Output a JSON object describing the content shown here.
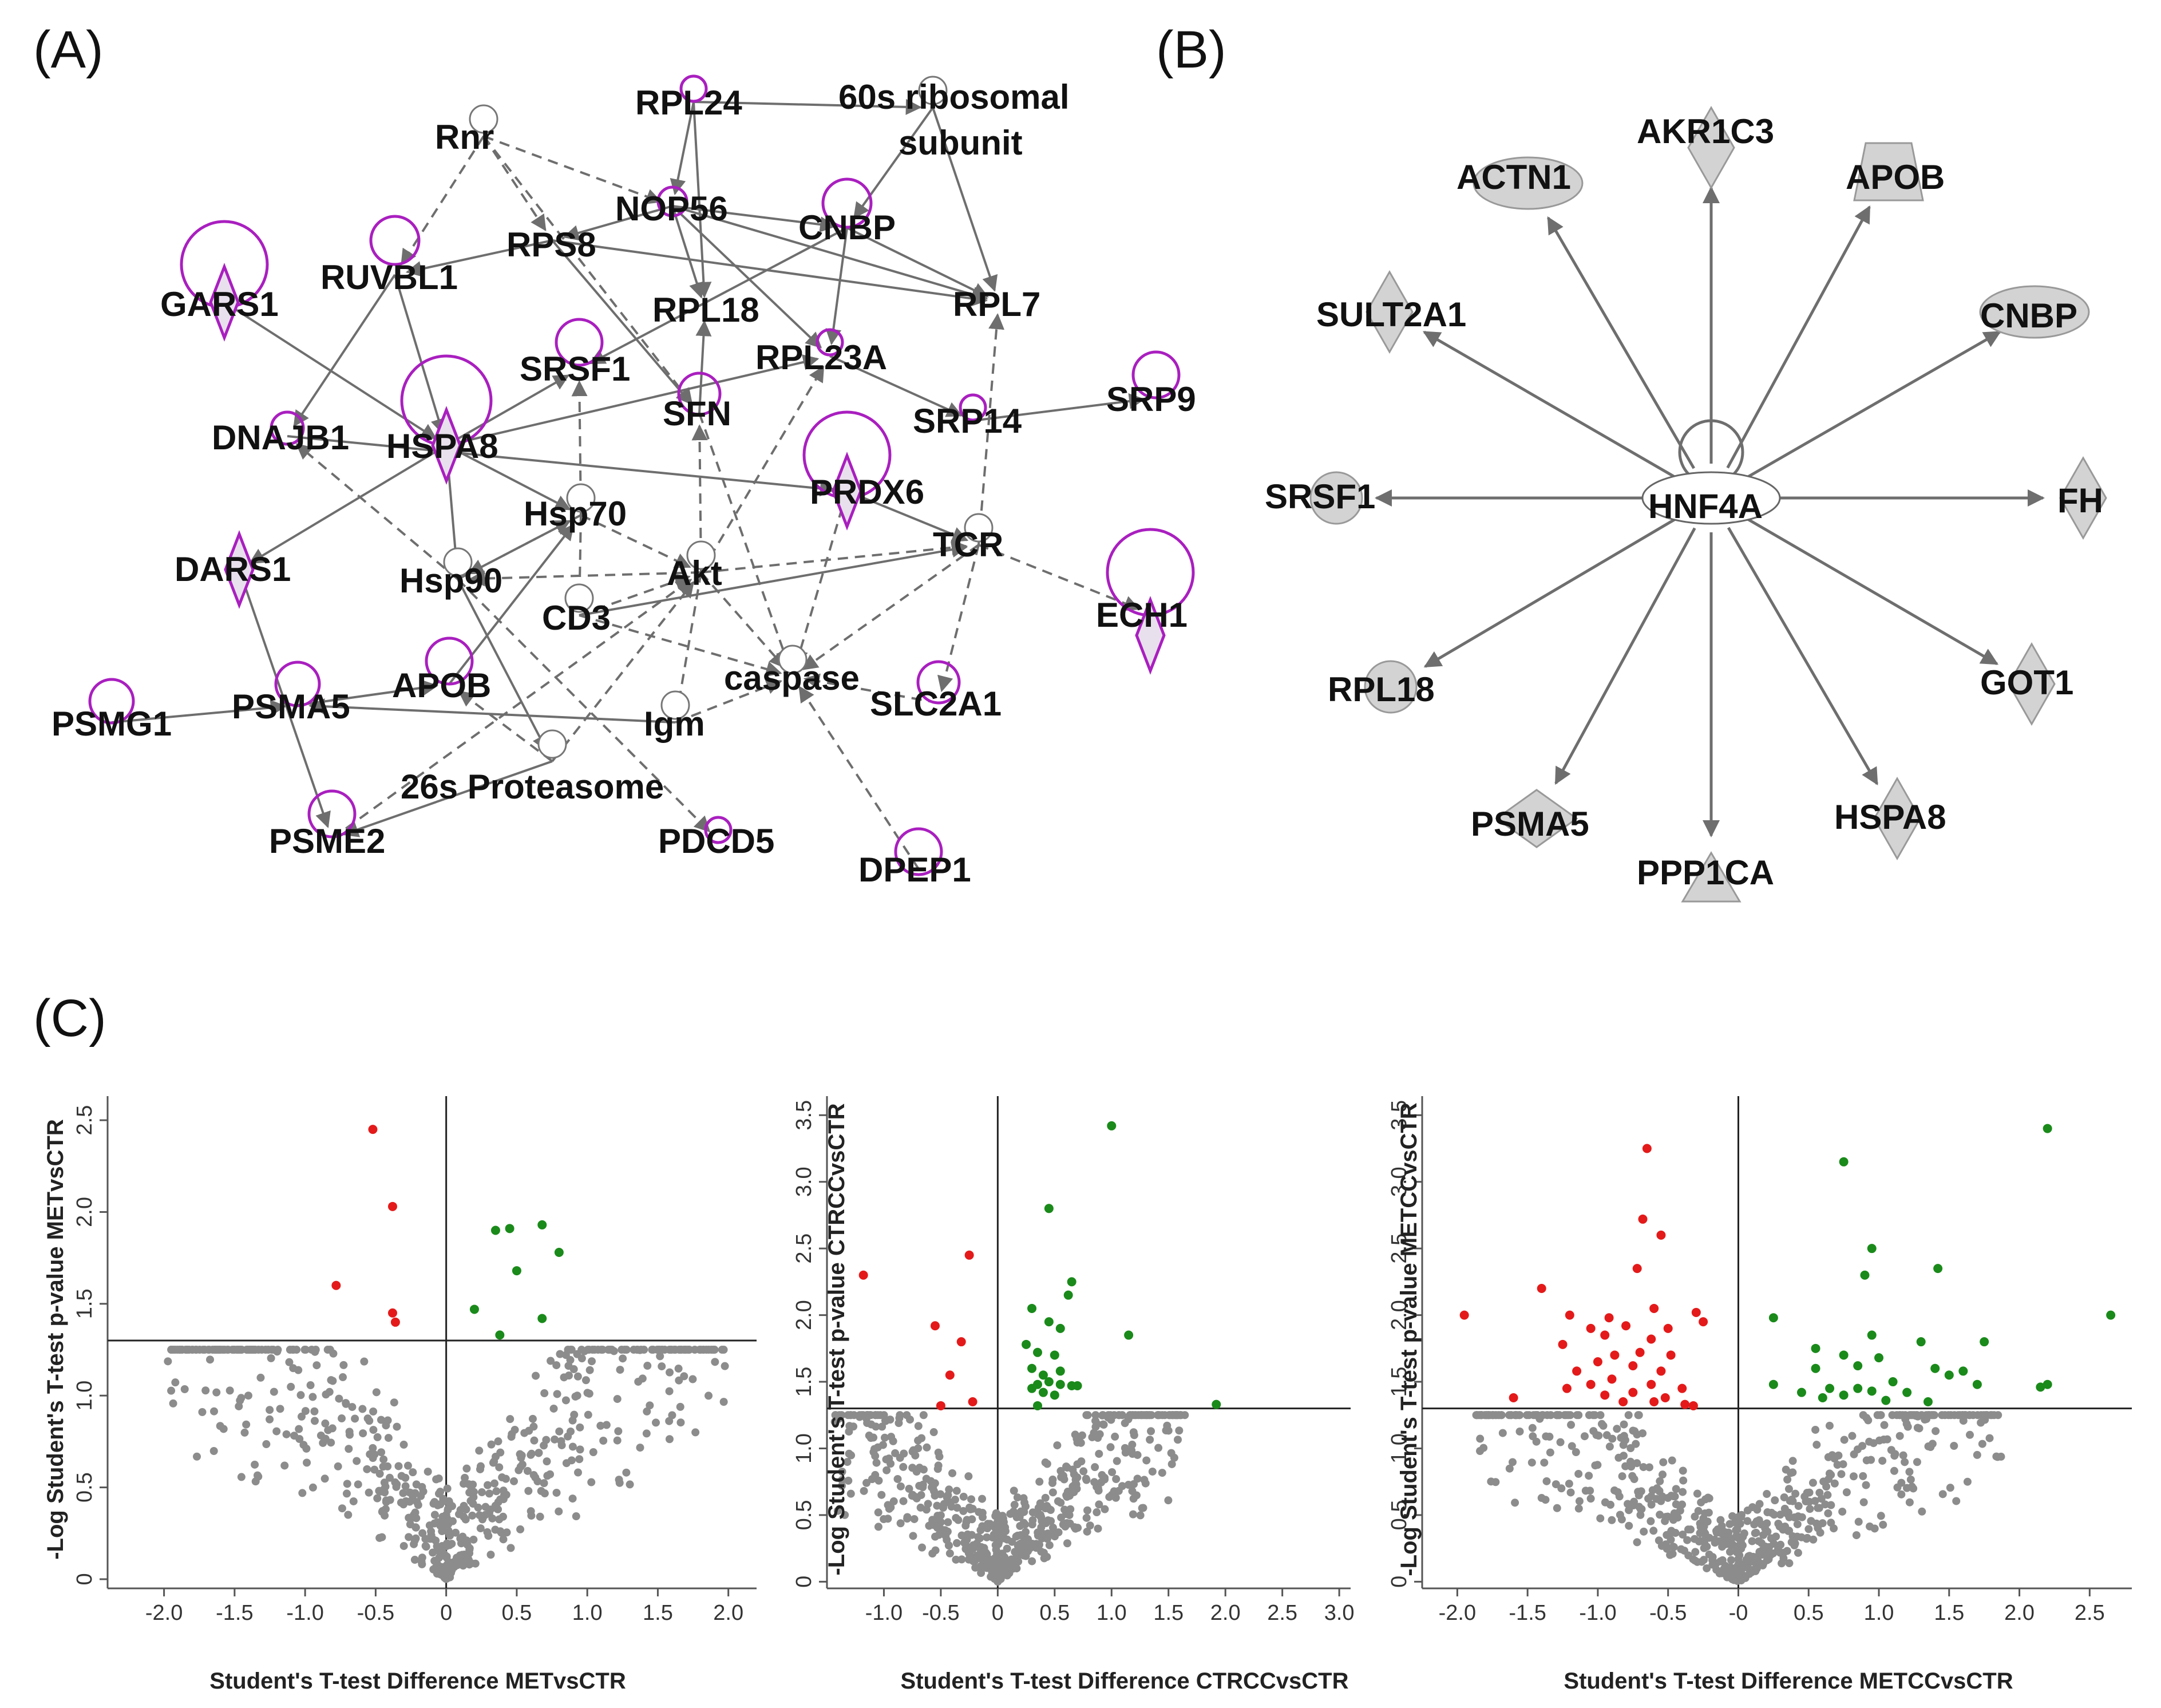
{
  "panels": {
    "a": "(A)",
    "b": "(B)",
    "c": "(C)"
  },
  "colors": {
    "self_loop": "#a91fbf",
    "edge": "#6e6e6e",
    "node_fill": "#d3d3d3",
    "up": "#1a8a1a",
    "down": "#e41a1a",
    "ns": "#8c8c8c"
  },
  "network_a": {
    "nodes": [
      "Rnr",
      "RPL24",
      "60s ribosomal",
      "subunit",
      "NOP56",
      "RPS8",
      "CNBP",
      "GARS1",
      "RUVBL1",
      "RPL18",
      "RPL7",
      "SRSF1",
      "RPL23A",
      "SFN",
      "SRP9",
      "SRP14",
      "DNAJB1",
      "HSPA8",
      "PRDX6",
      "Hsp70",
      "DARS1",
      "TCR",
      "Hsp90",
      "Akt",
      "ECH1",
      "CD3",
      "PSMG1",
      "PSMA5",
      "APOB",
      "caspase",
      "SLC2A1",
      "Igm",
      "26s Proteasome",
      "PSME2",
      "PDCD5",
      "DPEP1"
    ]
  },
  "network_b": {
    "hub": "HNF4A",
    "targets": [
      "AKR1C3",
      "APOB",
      "CNBP",
      "FH",
      "GOT1",
      "HSPA8",
      "PPP1CA",
      "PSMA5",
      "RPL18",
      "SRSF1",
      "SULT2A1",
      "ACTN1"
    ]
  },
  "chart_data": [
    {
      "type": "scatter",
      "title": "",
      "xlabel": "Student's T-test Difference METvsCTR",
      "ylabel": "-Log Student's T-test p-value METvsCTR",
      "xlim": [
        -2.4,
        2.2
      ],
      "ylim": [
        -0.05,
        2.6
      ],
      "xticks": [
        -2.0,
        -1.5,
        -1.0,
        -0.5,
        0,
        0.5,
        1.0,
        1.5,
        2.0
      ],
      "xtick_labels": [
        "-2.0",
        "-1.5",
        "-1.0",
        "-0.5",
        "0",
        "0.5",
        "1.0",
        "1.5",
        "2.0"
      ],
      "yticks": [
        0,
        0.5,
        1.0,
        1.5,
        2.0,
        2.5
      ],
      "ytick_labels": [
        "0",
        "0.5",
        "1.0",
        "1.5",
        "2.0",
        "2.5"
      ],
      "threshold_y": 1.3,
      "series": [
        {
          "name": "up",
          "color": "#1a8a1a",
          "points": [
            [
              0.35,
              1.9
            ],
            [
              0.45,
              1.91
            ],
            [
              0.68,
              1.93
            ],
            [
              0.8,
              1.78
            ],
            [
              0.5,
              1.68
            ],
            [
              0.2,
              1.47
            ],
            [
              0.68,
              1.42
            ],
            [
              0.38,
              1.33
            ]
          ]
        },
        {
          "name": "down",
          "color": "#e41a1a",
          "points": [
            [
              -0.52,
              2.45
            ],
            [
              -0.38,
              2.03
            ],
            [
              -0.78,
              1.6
            ],
            [
              -0.38,
              1.45
            ],
            [
              -0.36,
              1.4
            ]
          ]
        },
        {
          "name": "ns",
          "color": "#8c8c8c",
          "seed": 11,
          "n": 640,
          "xspread": 0.9,
          "ymax": 1.25
        }
      ]
    },
    {
      "type": "scatter",
      "title": "",
      "xlabel": "Student's T-test Difference CTRCCvsCTR",
      "ylabel": "-Log Student's T-test p-value CTRCCvsCTR",
      "xlim": [
        -1.5,
        3.1
      ],
      "ylim": [
        -0.05,
        3.6
      ],
      "xticks": [
        -1.0,
        -0.5,
        0,
        0.5,
        1.0,
        1.5,
        2.0,
        2.5,
        3.0
      ],
      "xtick_labels": [
        "-1.0",
        "-0.5",
        "0",
        "0.5",
        "1.0",
        "1.5",
        "2.0",
        "2.5",
        "3.0"
      ],
      "yticks": [
        0,
        0.5,
        1.0,
        1.5,
        2.0,
        2.5,
        3.0,
        3.5
      ],
      "ytick_labels": [
        "0",
        "0.5",
        "1.0",
        "1.5",
        "2.0",
        "2.5",
        "3.0",
        "3.5"
      ],
      "threshold_y": 1.3,
      "series": [
        {
          "name": "up",
          "color": "#1a8a1a",
          "points": [
            [
              1.0,
              3.42
            ],
            [
              0.45,
              2.8
            ],
            [
              0.65,
              2.25
            ],
            [
              0.62,
              2.15
            ],
            [
              0.3,
              2.05
            ],
            [
              0.45,
              1.95
            ],
            [
              0.55,
              1.9
            ],
            [
              1.15,
              1.85
            ],
            [
              0.25,
              1.78
            ],
            [
              0.35,
              1.72
            ],
            [
              0.5,
              1.7
            ],
            [
              0.3,
              1.6
            ],
            [
              0.55,
              1.58
            ],
            [
              0.4,
              1.55
            ],
            [
              0.45,
              1.5
            ],
            [
              0.35,
              1.48
            ],
            [
              0.55,
              1.48
            ],
            [
              0.65,
              1.47
            ],
            [
              0.7,
              1.47
            ],
            [
              0.3,
              1.45
            ],
            [
              0.4,
              1.42
            ],
            [
              0.5,
              1.4
            ],
            [
              1.92,
              1.33
            ],
            [
              0.35,
              1.32
            ]
          ]
        },
        {
          "name": "down",
          "color": "#e41a1a",
          "points": [
            [
              -1.18,
              2.3
            ],
            [
              -0.25,
              2.45
            ],
            [
              -0.55,
              1.92
            ],
            [
              -0.32,
              1.8
            ],
            [
              -0.42,
              1.55
            ],
            [
              -0.22,
              1.35
            ],
            [
              -0.5,
              1.32
            ]
          ]
        },
        {
          "name": "ns",
          "color": "#8c8c8c",
          "seed": 29,
          "n": 640,
          "xspread": 0.75,
          "ymax": 1.25
        }
      ]
    },
    {
      "type": "scatter",
      "title": "",
      "xlabel": "Student's T-test Difference METCCvsCTR",
      "ylabel": "-Log Student's T-test p-value METCCvsCTR",
      "xlim": [
        -2.25,
        2.8
      ],
      "ylim": [
        -0.05,
        3.6
      ],
      "xticks": [
        -2.0,
        -1.5,
        -1.0,
        -0.5,
        0,
        0.5,
        1.0,
        1.5,
        2.0,
        2.5
      ],
      "xtick_labels": [
        "-2.0",
        "-1.5",
        "-1.0",
        "-0.5",
        "-0",
        "0.5",
        "1.0",
        "1.5",
        "2.0",
        "2.5"
      ],
      "yticks": [
        0,
        0.5,
        1.0,
        1.5,
        2.0,
        2.5,
        3.0,
        3.5
      ],
      "ytick_labels": [
        "0",
        "0.5",
        "1.0",
        "1.5",
        "2.0",
        "2.5",
        "3.0",
        "3.5"
      ],
      "threshold_y": 1.3,
      "series": [
        {
          "name": "up",
          "color": "#1a8a1a",
          "points": [
            [
              2.2,
              3.4
            ],
            [
              0.75,
              3.15
            ],
            [
              0.95,
              2.5
            ],
            [
              1.42,
              2.35
            ],
            [
              0.9,
              2.3
            ],
            [
              2.65,
              2.0
            ],
            [
              0.25,
              1.98
            ],
            [
              0.95,
              1.85
            ],
            [
              1.3,
              1.8
            ],
            [
              1.75,
              1.8
            ],
            [
              0.55,
              1.75
            ],
            [
              0.75,
              1.7
            ],
            [
              1.0,
              1.68
            ],
            [
              0.55,
              1.6
            ],
            [
              0.85,
              1.62
            ],
            [
              1.4,
              1.6
            ],
            [
              1.6,
              1.58
            ],
            [
              1.5,
              1.55
            ],
            [
              0.25,
              1.48
            ],
            [
              2.2,
              1.48
            ],
            [
              0.65,
              1.45
            ],
            [
              0.45,
              1.42
            ],
            [
              0.85,
              1.45
            ],
            [
              1.1,
              1.5
            ],
            [
              0.95,
              1.43
            ],
            [
              1.2,
              1.42
            ],
            [
              0.6,
              1.38
            ],
            [
              0.75,
              1.4
            ],
            [
              1.7,
              1.48
            ],
            [
              1.35,
              1.35
            ],
            [
              1.05,
              1.36
            ],
            [
              2.15,
              1.46
            ]
          ]
        },
        {
          "name": "down",
          "color": "#e41a1a",
          "points": [
            [
              -0.65,
              3.25
            ],
            [
              -0.68,
              2.72
            ],
            [
              -0.55,
              2.6
            ],
            [
              -0.72,
              2.35
            ],
            [
              -1.4,
              2.2
            ],
            [
              -0.6,
              2.05
            ],
            [
              -0.3,
              2.02
            ],
            [
              -1.2,
              2.0
            ],
            [
              -1.95,
              2.0
            ],
            [
              -0.92,
              1.98
            ],
            [
              -0.25,
              1.95
            ],
            [
              -0.8,
              1.92
            ],
            [
              -1.05,
              1.9
            ],
            [
              -0.5,
              1.9
            ],
            [
              -0.95,
              1.85
            ],
            [
              -0.62,
              1.82
            ],
            [
              -1.25,
              1.78
            ],
            [
              -0.7,
              1.72
            ],
            [
              -0.88,
              1.7
            ],
            [
              -0.48,
              1.7
            ],
            [
              -1.0,
              1.65
            ],
            [
              -0.75,
              1.62
            ],
            [
              -1.15,
              1.58
            ],
            [
              -0.55,
              1.58
            ],
            [
              -0.9,
              1.52
            ],
            [
              -1.05,
              1.48
            ],
            [
              -0.62,
              1.48
            ],
            [
              -0.4,
              1.45
            ],
            [
              -1.22,
              1.45
            ],
            [
              -0.75,
              1.42
            ],
            [
              -0.95,
              1.4
            ],
            [
              -0.52,
              1.38
            ],
            [
              -1.6,
              1.38
            ],
            [
              -0.82,
              1.35
            ],
            [
              -0.6,
              1.35
            ],
            [
              -0.38,
              1.33
            ],
            [
              -0.32,
              1.32
            ]
          ]
        },
        {
          "name": "ns",
          "color": "#8c8c8c",
          "seed": 47,
          "n": 640,
          "xspread": 0.85,
          "ymax": 1.25
        }
      ]
    }
  ]
}
